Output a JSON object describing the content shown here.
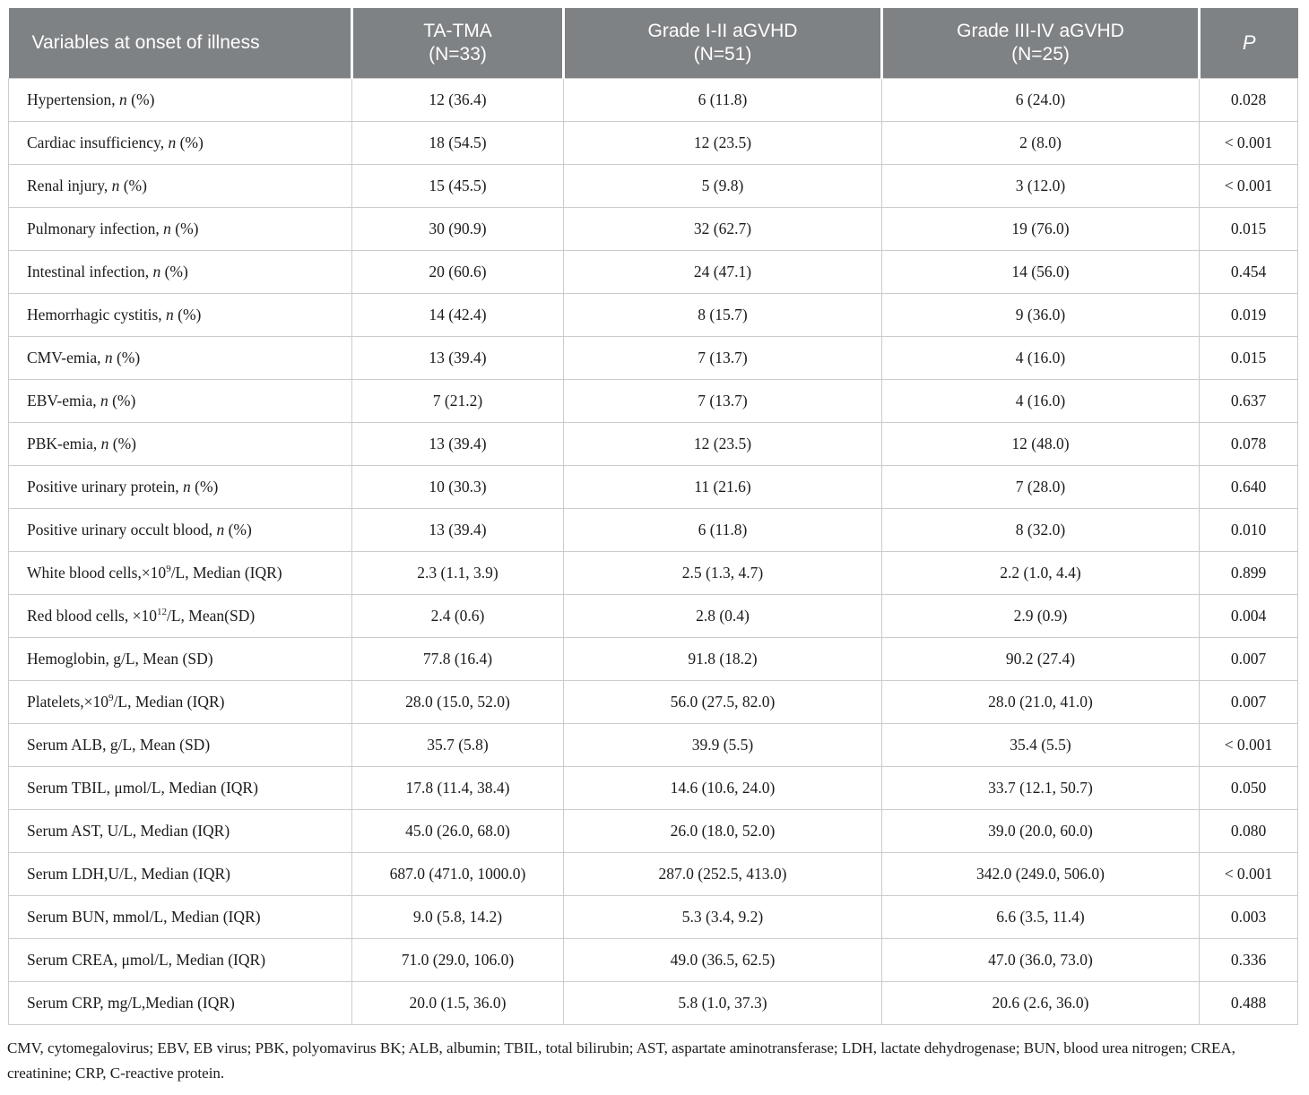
{
  "theme": {
    "header_bg": "#7f8284",
    "header_text": "#ffffff",
    "body_text": "#1b1b1b",
    "border_color": "#cccccc"
  },
  "table": {
    "header": {
      "variables": "Variables at onset of illness",
      "ta_tma": "TA-TMA\n(N=33)",
      "grade_1_2": "Grade I-II aGVHD\n(N=51)",
      "grade_3_4": "Grade III-IV aGVHD\n(N=25)",
      "p": "P"
    },
    "rows": [
      {
        "label": "Hypertension, *n* (%)",
        "values": [
          "12 (36.4)",
          "6 (11.8)",
          "6 (24.0)",
          "0.028"
        ]
      },
      {
        "label": "Cardiac insufficiency, *n* (%)",
        "values": [
          "18 (54.5)",
          "12 (23.5)",
          "2 (8.0)",
          "< 0.001"
        ]
      },
      {
        "label": "Renal injury, *n* (%)",
        "values": [
          "15 (45.5)",
          "5 (9.8)",
          "3 (12.0)",
          "< 0.001"
        ]
      },
      {
        "label": "Pulmonary infection, *n* (%)",
        "values": [
          "30 (90.9)",
          "32 (62.7)",
          "19 (76.0)",
          "0.015"
        ]
      },
      {
        "label": "Intestinal infection, *n* (%)",
        "values": [
          "20 (60.6)",
          "24 (47.1)",
          "14 (56.0)",
          "0.454"
        ]
      },
      {
        "label": "Hemorrhagic cystitis, *n* (%)",
        "values": [
          "14 (42.4)",
          "8 (15.7)",
          "9 (36.0)",
          "0.019"
        ]
      },
      {
        "label": "CMV-emia, *n* (%)",
        "values": [
          "13 (39.4)",
          "7 (13.7)",
          "4 (16.0)",
          "0.015"
        ]
      },
      {
        "label": "EBV-emia, *n* (%)",
        "values": [
          "7 (21.2)",
          "7 (13.7)",
          "4 (16.0)",
          "0.637"
        ]
      },
      {
        "label": "PBK-emia, *n* (%)",
        "values": [
          "13 (39.4)",
          "12 (23.5)",
          "12 (48.0)",
          "0.078"
        ]
      },
      {
        "label": "Positive urinary protein, *n* (%)",
        "values": [
          "10 (30.3)",
          "11 (21.6)",
          "7 (28.0)",
          "0.640"
        ]
      },
      {
        "label": "Positive urinary occult blood, *n* (%)",
        "values": [
          "13 (39.4)",
          "6 (11.8)",
          "8 (32.0)",
          "0.010"
        ]
      },
      {
        "label": "White blood cells,×10^9^/L, Median (IQR)",
        "values": [
          "2.3 (1.1, 3.9)",
          "2.5 (1.3, 4.7)",
          "2.2 (1.0, 4.4)",
          "0.899"
        ]
      },
      {
        "label": "Red blood cells, ×10^12^/L, Mean(SD)",
        "values": [
          "2.4 (0.6)",
          "2.8 (0.4)",
          "2.9 (0.9)",
          "0.004"
        ]
      },
      {
        "label": "Hemoglobin, g/L, Mean (SD)",
        "values": [
          "77.8 (16.4)",
          "91.8 (18.2)",
          "90.2 (27.4)",
          "0.007"
        ]
      },
      {
        "label": "Platelets,×10^9^/L, Median (IQR)",
        "values": [
          "28.0 (15.0, 52.0)",
          "56.0 (27.5, 82.0)",
          "28.0 (21.0, 41.0)",
          "0.007"
        ]
      },
      {
        "label": "Serum ALB, g/L, Mean (SD)",
        "values": [
          "35.7 (5.8)",
          "39.9 (5.5)",
          "35.4 (5.5)",
          "< 0.001"
        ]
      },
      {
        "label": "Serum TBIL, μmol/L, Median (IQR)",
        "values": [
          "17.8 (11.4, 38.4)",
          "14.6 (10.6, 24.0)",
          "33.7 (12.1, 50.7)",
          "0.050"
        ]
      },
      {
        "label": "Serum AST, U/L, Median (IQR)",
        "values": [
          "45.0 (26.0, 68.0)",
          "26.0 (18.0, 52.0)",
          "39.0 (20.0, 60.0)",
          "0.080"
        ]
      },
      {
        "label": "Serum LDH,U/L, Median (IQR)",
        "values": [
          "687.0 (471.0, 1000.0)",
          "287.0 (252.5, 413.0)",
          "342.0 (249.0, 506.0)",
          "< 0.001"
        ]
      },
      {
        "label": "Serum BUN, mmol/L, Median (IQR)",
        "values": [
          "9.0 (5.8, 14.2)",
          "5.3 (3.4, 9.2)",
          "6.6 (3.5, 11.4)",
          "0.003"
        ]
      },
      {
        "label": "Serum CREA, μmol/L, Median (IQR)",
        "values": [
          "71.0 (29.0, 106.0)",
          "49.0 (36.5, 62.5)",
          "47.0 (36.0, 73.0)",
          "0.336"
        ]
      },
      {
        "label": "Serum CRP, mg/L,Median (IQR)",
        "values": [
          "20.0 (1.5, 36.0)",
          "5.8 (1.0, 37.3)",
          "20.6 (2.6, 36.0)",
          "0.488"
        ]
      }
    ]
  },
  "footnote": "CMV, cytomegalovirus; EBV, EB virus; PBK, polyomavirus BK; ALB, albumin; TBIL, total bilirubin; AST, aspartate aminotransferase; LDH, lactate dehydrogenase; BUN, blood urea nitrogen; CREA, creatinine; CRP, C-reactive protein."
}
